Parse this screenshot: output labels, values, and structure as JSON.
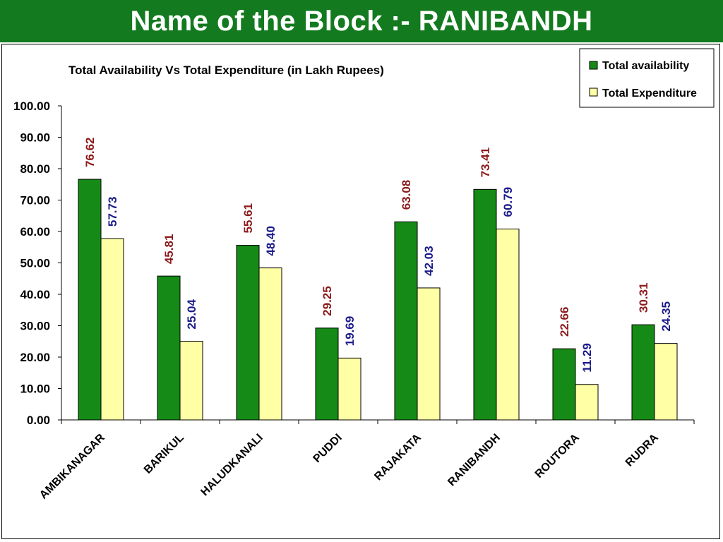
{
  "slide": {
    "title": "Name of the Block :- RANIBANDH"
  },
  "colors": {
    "header_bg": "#137a1f",
    "availability_bar": "#168a16",
    "expenditure_bar": "#ffffa6",
    "availability_label": "#8b1a1a",
    "expenditure_label": "#1a1a8b"
  },
  "chart_data": {
    "type": "bar",
    "title": "Total Availability Vs Total Expenditure (in Lakh Rupees)",
    "categories": [
      "AMBIKANAGAR",
      "BARIKUL",
      "HALUDKANALI",
      "PUDDI",
      "RAJAKATA",
      "RANIBANDH",
      "ROUTORA",
      "RUDRA"
    ],
    "series": [
      {
        "name": "Total availability",
        "values": [
          76.62,
          45.81,
          55.61,
          29.25,
          63.08,
          73.41,
          22.66,
          30.31
        ],
        "labels": [
          "76.62",
          "45.81",
          "55.61",
          "29.25",
          "63.08",
          "73.41",
          "22.66",
          "30.31"
        ]
      },
      {
        "name": "Total Expenditure",
        "values": [
          57.73,
          25.04,
          48.4,
          19.69,
          42.03,
          60.79,
          11.29,
          24.35
        ],
        "labels": [
          "57.73",
          "25.04",
          "48.40",
          "19.69",
          "42.03",
          "60.79",
          "11.29",
          "24.35"
        ]
      }
    ],
    "ylim": [
      0,
      100
    ],
    "yticks": [
      "0.00",
      "10.00",
      "20.00",
      "30.00",
      "40.00",
      "50.00",
      "60.00",
      "70.00",
      "80.00",
      "90.00",
      "100.00"
    ],
    "grid": false,
    "legend": "top-right"
  }
}
